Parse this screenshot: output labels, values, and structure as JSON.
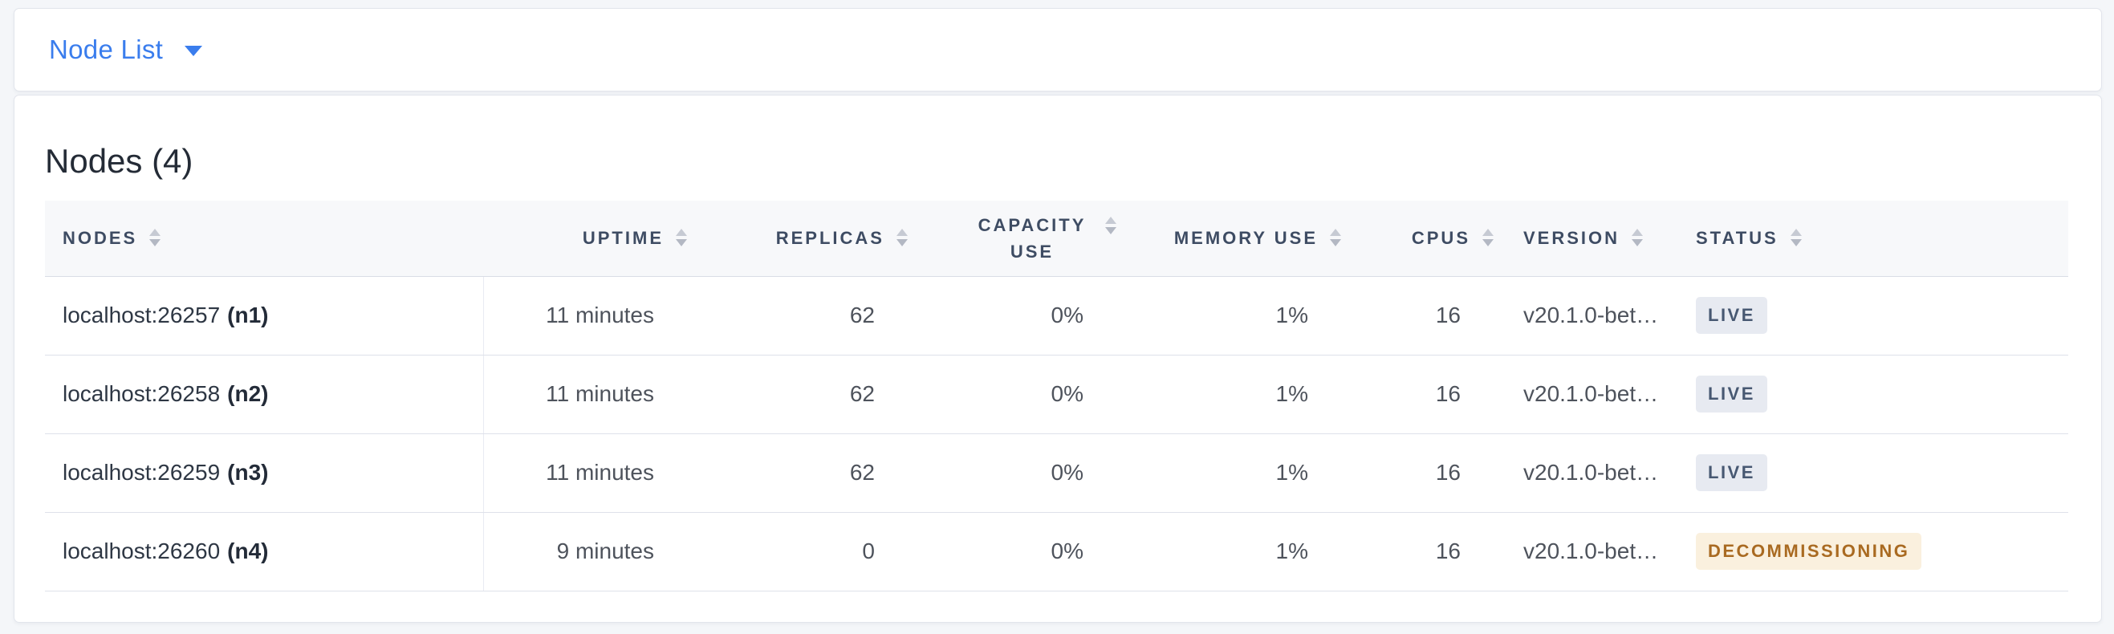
{
  "toolbar": {
    "view_selector_label": "Node List"
  },
  "main": {
    "title": "Nodes (4)",
    "table": {
      "columns": [
        {
          "key": "nodes",
          "label": "NODES",
          "align": "left"
        },
        {
          "key": "uptime",
          "label": "UPTIME",
          "align": "right"
        },
        {
          "key": "replicas",
          "label": "REPLICAS",
          "align": "right"
        },
        {
          "key": "capacity_use",
          "label": "CAPACITY USE",
          "align": "right"
        },
        {
          "key": "memory_use",
          "label": "MEMORY USE",
          "align": "right"
        },
        {
          "key": "cpus",
          "label": "CPUS",
          "align": "right"
        },
        {
          "key": "version",
          "label": "VERSION",
          "align": "left"
        },
        {
          "key": "status",
          "label": "STATUS",
          "align": "left"
        }
      ],
      "rows": [
        {
          "node_address": "localhost:26257",
          "node_id": "(n1)",
          "uptime": "11 minutes",
          "replicas": "62",
          "capacity_use": "0%",
          "memory_use": "1%",
          "cpus": "16",
          "version": "v20.1.0-bet…",
          "status": "LIVE",
          "status_type": "live"
        },
        {
          "node_address": "localhost:26258",
          "node_id": "(n2)",
          "uptime": "11 minutes",
          "replicas": "62",
          "capacity_use": "0%",
          "memory_use": "1%",
          "cpus": "16",
          "version": "v20.1.0-bet…",
          "status": "LIVE",
          "status_type": "live"
        },
        {
          "node_address": "localhost:26259",
          "node_id": "(n3)",
          "uptime": "11 minutes",
          "replicas": "62",
          "capacity_use": "0%",
          "memory_use": "1%",
          "cpus": "16",
          "version": "v20.1.0-bet…",
          "status": "LIVE",
          "status_type": "live"
        },
        {
          "node_address": "localhost:26260",
          "node_id": "(n4)",
          "uptime": "9 minutes",
          "replicas": "0",
          "capacity_use": "0%",
          "memory_use": "1%",
          "cpus": "16",
          "version": "v20.1.0-bet…",
          "status": "DECOMMISSIONING",
          "status_type": "decommissioning"
        }
      ]
    }
  },
  "icons": {
    "chevron_down": "chevron-down-icon",
    "sort": "sort-arrows-icon"
  },
  "colors": {
    "accent_blue": "#3a7ded",
    "live_badge_bg": "#e7eaf1",
    "live_badge_text": "#475872",
    "decommissioning_badge_bg": "#faf0de",
    "decommissioning_badge_text": "#a96a21"
  }
}
